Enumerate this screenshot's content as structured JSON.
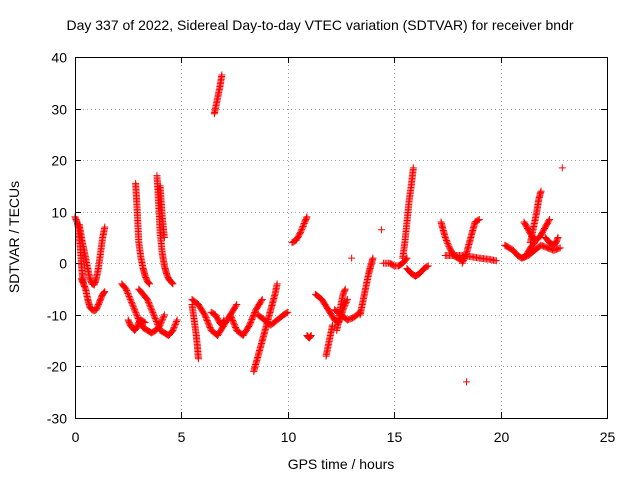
{
  "chart_data": {
    "type": "scatter",
    "title": "Day 337 of 2022, Sidereal Day-to-day VTEC variation (SDTVAR) for receiver bndr",
    "xlabel": "GPS time / hours",
    "ylabel": "SDTVAR / TECUs",
    "xlim": [
      0,
      25
    ],
    "ylim": [
      -30,
      40
    ],
    "xticks": [
      0,
      5,
      10,
      15,
      20,
      25
    ],
    "yticks": [
      -30,
      -20,
      -10,
      0,
      10,
      20,
      30,
      40
    ],
    "grid": true,
    "marker": "plus",
    "color": "#ff0000",
    "series": [
      {
        "points": [
          [
            0.0,
            9
          ],
          [
            0.05,
            8.5
          ],
          [
            0.1,
            8
          ],
          [
            0.15,
            7
          ],
          [
            0.2,
            5.5
          ],
          [
            0.25,
            3
          ],
          [
            0.3,
            0
          ],
          [
            0.35,
            -2.5
          ],
          [
            0.4,
            -4
          ]
        ]
      },
      {
        "points": [
          [
            0.2,
            7.5
          ],
          [
            0.3,
            5
          ],
          [
            0.4,
            3
          ],
          [
            0.5,
            1
          ],
          [
            0.6,
            -1
          ],
          [
            0.7,
            -3
          ],
          [
            0.8,
            -4
          ],
          [
            0.9,
            -4.2
          ],
          [
            1.0,
            -3
          ],
          [
            1.1,
            -1
          ],
          [
            1.2,
            2
          ],
          [
            1.3,
            5
          ],
          [
            1.4,
            7
          ]
        ]
      },
      {
        "points": [
          [
            0.3,
            -3
          ],
          [
            0.4,
            -4
          ],
          [
            0.5,
            -5
          ],
          [
            0.6,
            -7
          ],
          [
            0.7,
            -8.5
          ],
          [
            0.8,
            -9
          ],
          [
            0.9,
            -9.2
          ],
          [
            1.0,
            -9
          ],
          [
            1.1,
            -8
          ],
          [
            1.2,
            -7
          ],
          [
            1.3,
            -6
          ],
          [
            1.4,
            -5.5
          ]
        ]
      },
      {
        "points": [
          [
            2.2,
            -4
          ],
          [
            2.4,
            -5
          ],
          [
            2.6,
            -7
          ],
          [
            2.8,
            -9
          ],
          [
            3.0,
            -11
          ],
          [
            3.2,
            -12.5
          ],
          [
            3.4,
            -13
          ],
          [
            3.6,
            -13.5
          ],
          [
            3.8,
            -13
          ],
          [
            4.0,
            -12
          ],
          [
            4.2,
            -10
          ]
        ]
      },
      {
        "points": [
          [
            2.5,
            -11
          ],
          [
            2.6,
            -12
          ],
          [
            2.7,
            -12.5
          ],
          [
            2.8,
            -13
          ],
          [
            2.9,
            -12.5
          ],
          [
            3.0,
            -11.5
          ],
          [
            3.1,
            -11
          ],
          [
            3.3,
            -11.5
          ]
        ]
      },
      {
        "points": [
          [
            2.85,
            15.5
          ],
          [
            2.9,
            12
          ],
          [
            2.95,
            8
          ],
          [
            3.0,
            4
          ],
          [
            3.1,
            1
          ],
          [
            3.2,
            -1
          ],
          [
            3.3,
            -2.5
          ],
          [
            3.4,
            -3.5
          ],
          [
            3.5,
            -4
          ]
        ]
      },
      {
        "points": [
          [
            3.0,
            -5
          ],
          [
            3.2,
            -6
          ],
          [
            3.4,
            -7
          ],
          [
            3.6,
            -9
          ],
          [
            3.8,
            -11
          ],
          [
            4.0,
            -13
          ],
          [
            4.2,
            -13.5
          ],
          [
            4.4,
            -14
          ],
          [
            4.6,
            -13
          ],
          [
            4.8,
            -11
          ]
        ]
      },
      {
        "points": [
          [
            3.85,
            17
          ],
          [
            3.9,
            14
          ],
          [
            3.95,
            10
          ],
          [
            4.0,
            6
          ],
          [
            4.1,
            2
          ],
          [
            4.2,
            -0.5
          ],
          [
            4.3,
            -2
          ],
          [
            4.4,
            -3
          ],
          [
            4.5,
            -3.5
          ],
          [
            4.6,
            -4
          ]
        ]
      },
      {
        "points": [
          [
            4.0,
            15
          ],
          [
            4.05,
            12
          ],
          [
            4.1,
            9
          ],
          [
            4.2,
            5
          ]
        ]
      },
      {
        "points": [
          [
            5.5,
            -8
          ],
          [
            5.6,
            -11
          ],
          [
            5.7,
            -14
          ],
          [
            5.75,
            -16
          ],
          [
            5.8,
            -18.5
          ]
        ]
      },
      {
        "points": [
          [
            5.5,
            -7
          ],
          [
            5.8,
            -8
          ],
          [
            6.1,
            -10
          ],
          [
            6.4,
            -13
          ],
          [
            6.7,
            -14
          ],
          [
            7.0,
            -12
          ],
          [
            7.3,
            -10
          ],
          [
            7.6,
            -8
          ]
        ]
      },
      {
        "points": [
          [
            6.4,
            -9.5
          ],
          [
            6.6,
            -10
          ],
          [
            6.8,
            -11.5
          ],
          [
            6.9,
            -12
          ],
          [
            7.0,
            -11
          ]
        ]
      },
      {
        "points": [
          [
            6.55,
            29
          ],
          [
            6.6,
            30
          ],
          [
            6.7,
            32
          ],
          [
            6.8,
            34
          ],
          [
            6.9,
            36.5
          ]
        ]
      },
      {
        "points": [
          [
            7.3,
            -10
          ],
          [
            7.6,
            -13
          ],
          [
            7.9,
            -14
          ],
          [
            8.2,
            -12
          ],
          [
            8.5,
            -9
          ],
          [
            8.8,
            -7
          ]
        ]
      },
      {
        "points": [
          [
            8.4,
            -21
          ],
          [
            8.6,
            -18
          ],
          [
            8.8,
            -15
          ],
          [
            9.0,
            -12
          ],
          [
            9.2,
            -9
          ],
          [
            9.4,
            -6
          ],
          [
            9.5,
            -4
          ]
        ]
      },
      {
        "points": [
          [
            8.6,
            -10
          ],
          [
            8.9,
            -11
          ],
          [
            9.2,
            -12
          ],
          [
            9.5,
            -11
          ],
          [
            9.8,
            -10
          ],
          [
            10.0,
            -9.5
          ]
        ]
      },
      {
        "points": [
          [
            10.2,
            4
          ],
          [
            10.4,
            4.5
          ],
          [
            10.6,
            6
          ],
          [
            10.8,
            8
          ],
          [
            10.9,
            9
          ]
        ]
      },
      {
        "points": [
          [
            10.9,
            -14
          ],
          [
            11.0,
            -14.5
          ],
          [
            11.1,
            -14
          ]
        ]
      },
      {
        "points": [
          [
            11.3,
            -6
          ],
          [
            11.6,
            -7
          ],
          [
            11.9,
            -9
          ],
          [
            12.2,
            -11
          ],
          [
            12.4,
            -11.5
          ],
          [
            12.6,
            -9
          ],
          [
            12.8,
            -7
          ]
        ]
      },
      {
        "points": [
          [
            11.8,
            -18
          ],
          [
            11.9,
            -16
          ],
          [
            12.0,
            -14
          ],
          [
            12.1,
            -12
          ]
        ]
      },
      {
        "points": [
          [
            12.2,
            -9
          ],
          [
            12.5,
            -10
          ],
          [
            12.8,
            -11
          ],
          [
            13.1,
            -10.5
          ],
          [
            13.4,
            -9.5
          ]
        ]
      },
      {
        "points": [
          [
            12.3,
            -13
          ],
          [
            12.4,
            -11
          ],
          [
            12.5,
            -8
          ],
          [
            12.6,
            -6
          ],
          [
            12.7,
            -5
          ]
        ]
      },
      {
        "points": [
          [
            13.0,
            1
          ]
        ]
      },
      {
        "points": [
          [
            13.4,
            -10
          ],
          [
            13.5,
            -8
          ],
          [
            13.6,
            -6
          ],
          [
            13.7,
            -4
          ],
          [
            13.8,
            -2
          ],
          [
            13.9,
            -0.5
          ],
          [
            14.0,
            1
          ]
        ]
      },
      {
        "points": [
          [
            14.4,
            6.5
          ]
        ]
      },
      {
        "points": [
          [
            14.5,
            0
          ],
          [
            14.8,
            0
          ],
          [
            15.0,
            -0.5
          ],
          [
            15.2,
            -0.5
          ],
          [
            15.4,
            0
          ],
          [
            15.6,
            1
          ]
        ]
      },
      {
        "points": [
          [
            15.4,
            1
          ],
          [
            15.5,
            4
          ],
          [
            15.6,
            8
          ],
          [
            15.7,
            12
          ],
          [
            15.8,
            15
          ],
          [
            15.9,
            18.5
          ]
        ]
      },
      {
        "points": [
          [
            15.6,
            -1
          ],
          [
            15.8,
            -2
          ],
          [
            16.0,
            -2.5
          ],
          [
            16.2,
            -2
          ],
          [
            16.4,
            -1
          ],
          [
            16.6,
            -0.5
          ]
        ]
      },
      {
        "points": [
          [
            17.2,
            8
          ],
          [
            17.4,
            5
          ],
          [
            17.6,
            3
          ],
          [
            17.8,
            1.5
          ],
          [
            18.0,
            1
          ],
          [
            18.2,
            0.5
          ]
        ]
      },
      {
        "points": [
          [
            17.4,
            1.5
          ],
          [
            17.8,
            1.5
          ],
          [
            18.2,
            1.5
          ],
          [
            18.6,
            1.3
          ],
          [
            19.0,
            1
          ],
          [
            19.4,
            0.8
          ],
          [
            19.8,
            0.5
          ]
        ]
      },
      {
        "points": [
          [
            18.2,
            0
          ],
          [
            18.4,
            2
          ],
          [
            18.6,
            5
          ],
          [
            18.8,
            8
          ],
          [
            19.0,
            8.5
          ]
        ]
      },
      {
        "points": [
          [
            18.4,
            -23
          ]
        ]
      },
      {
        "points": [
          [
            20.2,
            3.5
          ],
          [
            20.4,
            3
          ],
          [
            20.6,
            2.5
          ],
          [
            20.8,
            1.5
          ],
          [
            21.0,
            1
          ],
          [
            21.2,
            1.5
          ],
          [
            21.4,
            3
          ],
          [
            21.6,
            4
          ]
        ]
      },
      {
        "points": [
          [
            21.0,
            1
          ],
          [
            21.3,
            1.5
          ],
          [
            21.6,
            2.5
          ],
          [
            21.9,
            3.5
          ],
          [
            22.2,
            3
          ],
          [
            22.5,
            2.5
          ],
          [
            22.8,
            3
          ]
        ]
      },
      {
        "points": [
          [
            21.1,
            8
          ],
          [
            21.3,
            6.5
          ],
          [
            21.5,
            5
          ],
          [
            21.7,
            4.5
          ],
          [
            21.9,
            5.5
          ],
          [
            22.1,
            7
          ],
          [
            22.3,
            8.5
          ]
        ]
      },
      {
        "points": [
          [
            21.4,
            4
          ],
          [
            21.5,
            6
          ],
          [
            21.6,
            8
          ],
          [
            21.7,
            10
          ],
          [
            21.8,
            12.5
          ],
          [
            21.9,
            14
          ]
        ]
      },
      {
        "points": [
          [
            22.1,
            5
          ],
          [
            22.3,
            4
          ],
          [
            22.5,
            3.5
          ],
          [
            22.6,
            4
          ],
          [
            22.7,
            5
          ]
        ]
      },
      {
        "points": [
          [
            22.9,
            18.5
          ]
        ]
      }
    ]
  }
}
